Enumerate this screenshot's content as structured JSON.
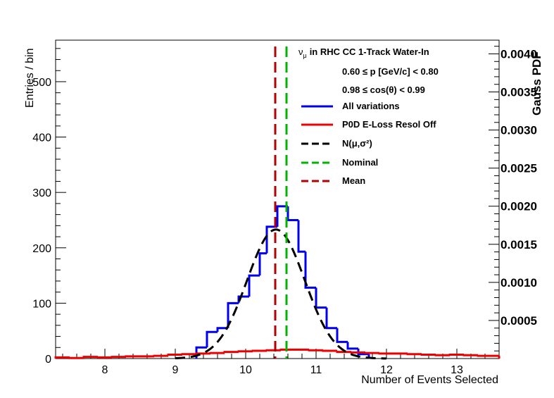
{
  "chart_data": {
    "type": "histogram",
    "xlabel": "Number of Events Selected",
    "ylabel_left": "Entries / bin",
    "ylabel_right": "Gauss PDF",
    "xlim": [
      7.3,
      13.6
    ],
    "ylim_left": [
      0,
      575
    ],
    "ylim_right": [
      0,
      0.00418
    ],
    "x_ticks": [
      "8",
      "9",
      "10",
      "11",
      "12",
      "13"
    ],
    "y_ticks_left": [
      "0",
      "100",
      "200",
      "300",
      "400",
      "500"
    ],
    "y_ticks_right": [
      "0.0005",
      "0.0010",
      "0.0015",
      "0.0020",
      "0.0025",
      "0.0030",
      "0.0035",
      "0.0040"
    ],
    "legend": {
      "header": "in RHC CC 1-Track Water-In",
      "header_symbol": "ν",
      "header_symbol_sub": "μ",
      "cut_p": "0.60 ≤ p [GeV/c] < 0.80",
      "cut_cos": "0.98 ≤ cos(θ) < 0.99",
      "entries": [
        {
          "label": "All variations",
          "color": "#0000ee",
          "style": "solid"
        },
        {
          "label": "P0D E-Loss Resol Off",
          "color": "#ee0000",
          "style": "solid"
        },
        {
          "label": "N(μ,σ²)",
          "color": "#000000",
          "style": "dashed"
        },
        {
          "label": "Nominal",
          "color": "#00b400",
          "style": "dashed"
        },
        {
          "label": "Mean",
          "color": "#b40000",
          "style": "dashed"
        }
      ]
    },
    "series": [
      {
        "name": "All variations",
        "color": "#0000ee",
        "bin_edges": [
          9.3,
          9.45,
          9.6,
          9.75,
          9.9,
          10.05,
          10.2,
          10.3,
          10.45,
          10.6,
          10.75,
          10.85,
          11.0,
          11.15,
          11.3,
          11.45,
          11.6,
          11.75
        ],
        "values": [
          20,
          48,
          55,
          100,
          112,
          150,
          190,
          238,
          275,
          250,
          193,
          128,
          92,
          55,
          30,
          18,
          8
        ]
      },
      {
        "name": "P0D E-Loss Resol Off",
        "color": "#ee0000",
        "bin_edges": [
          7.3,
          7.5,
          7.7,
          7.9,
          8.1,
          8.3,
          8.5,
          8.7,
          8.9,
          9.1,
          9.3,
          9.5,
          9.7,
          9.9,
          10.1,
          10.3,
          10.5,
          10.7,
          10.9,
          11.1,
          11.3,
          11.5,
          11.7,
          11.9,
          12.1,
          12.3,
          12.5,
          12.7,
          12.9,
          13.1,
          13.3,
          13.6
        ],
        "values": [
          2,
          1,
          3,
          2,
          3,
          4,
          4,
          5,
          7,
          8,
          9,
          10,
          12,
          13,
          14,
          15,
          16,
          16,
          15,
          14,
          12,
          11,
          10,
          9,
          9,
          8,
          7,
          6,
          7,
          6,
          5
        ]
      }
    ],
    "gauss": {
      "name": "N(μ,σ²)",
      "mu": 10.43,
      "sigma": 0.41,
      "peak": 233,
      "color": "#000000"
    },
    "nominal": {
      "name": "Nominal",
      "x": 10.58,
      "color": "#00b400"
    },
    "mean": {
      "name": "Mean",
      "x": 10.42,
      "color": "#b40000"
    }
  }
}
